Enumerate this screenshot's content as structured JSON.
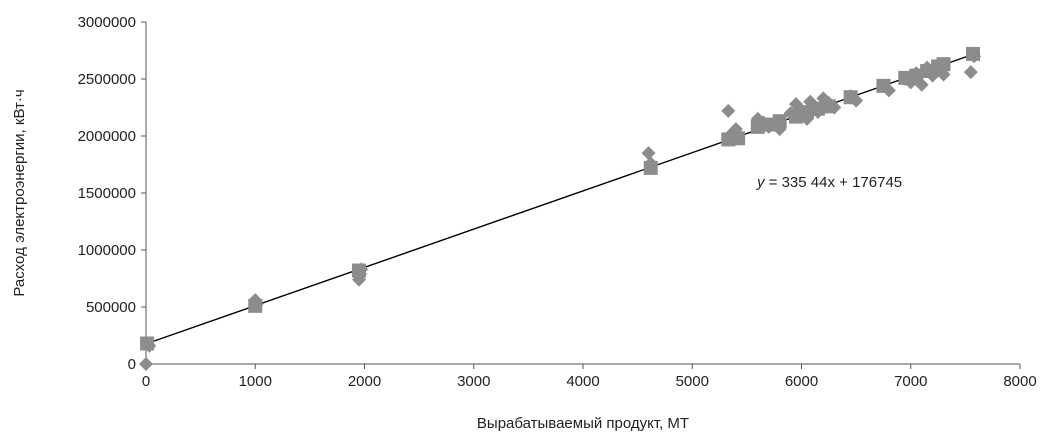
{
  "chart_data": {
    "type": "scatter",
    "title": "",
    "xlabel": "Вырабатываемый продукт, МТ",
    "ylabel": "Расход электроэнергии, кВт·ч",
    "xlim": [
      0,
      8000
    ],
    "ylim": [
      0,
      3000000
    ],
    "x_ticks": [
      "0",
      "1000",
      "2000",
      "3000",
      "4000",
      "5000",
      "6000",
      "7000",
      "8000"
    ],
    "y_ticks": [
      "0",
      "500000",
      "1000000",
      "1500000",
      "2000000",
      "2500000",
      "3000000"
    ],
    "grid": false,
    "legend": "none",
    "marker_color": "#8c8c8c",
    "line_color": "#000000",
    "series": [
      {
        "marker": "diamond",
        "points": [
          [
            0,
            0
          ],
          [
            30,
            160000
          ],
          [
            1000,
            560000
          ],
          [
            1010,
            520000
          ],
          [
            1950,
            740000
          ],
          [
            1960,
            790000
          ],
          [
            1970,
            830000
          ],
          [
            4600,
            1850000
          ],
          [
            4620,
            1760000
          ],
          [
            5330,
            2220000
          ],
          [
            5350,
            2010000
          ],
          [
            5400,
            2060000
          ],
          [
            5420,
            2000000
          ],
          [
            5600,
            2150000
          ],
          [
            5650,
            2120000
          ],
          [
            5700,
            2080000
          ],
          [
            5750,
            2100000
          ],
          [
            5800,
            2060000
          ],
          [
            5900,
            2200000
          ],
          [
            5950,
            2280000
          ],
          [
            5980,
            2240000
          ],
          [
            6000,
            2180000
          ],
          [
            6050,
            2150000
          ],
          [
            6080,
            2300000
          ],
          [
            6100,
            2260000
          ],
          [
            6150,
            2210000
          ],
          [
            6200,
            2330000
          ],
          [
            6250,
            2290000
          ],
          [
            6300,
            2250000
          ],
          [
            6450,
            2350000
          ],
          [
            6500,
            2310000
          ],
          [
            6750,
            2440000
          ],
          [
            6800,
            2400000
          ],
          [
            6950,
            2500000
          ],
          [
            7000,
            2470000
          ],
          [
            7050,
            2550000
          ],
          [
            7100,
            2450000
          ],
          [
            7150,
            2600000
          ],
          [
            7200,
            2530000
          ],
          [
            7250,
            2580000
          ],
          [
            7300,
            2540000
          ],
          [
            7550,
            2560000
          ],
          [
            7580,
            2700000
          ]
        ]
      },
      {
        "marker": "square",
        "points": [
          [
            10,
            180000
          ],
          [
            1000,
            510000
          ],
          [
            1950,
            820000
          ],
          [
            4620,
            1720000
          ],
          [
            5330,
            1970000
          ],
          [
            5420,
            1980000
          ],
          [
            5600,
            2080000
          ],
          [
            5700,
            2100000
          ],
          [
            5800,
            2130000
          ],
          [
            5950,
            2170000
          ],
          [
            6050,
            2210000
          ],
          [
            6150,
            2240000
          ],
          [
            6250,
            2260000
          ],
          [
            6450,
            2340000
          ],
          [
            6750,
            2440000
          ],
          [
            6950,
            2510000
          ],
          [
            7050,
            2530000
          ],
          [
            7150,
            2570000
          ],
          [
            7250,
            2610000
          ],
          [
            7300,
            2630000
          ],
          [
            7570,
            2720000
          ]
        ]
      }
    ],
    "trendline": {
      "slope": 335.44,
      "intercept": 176745,
      "x_range": [
        0,
        7580
      ],
      "label_var": "y",
      "label_rest": " = 335 44x + 176745"
    }
  }
}
